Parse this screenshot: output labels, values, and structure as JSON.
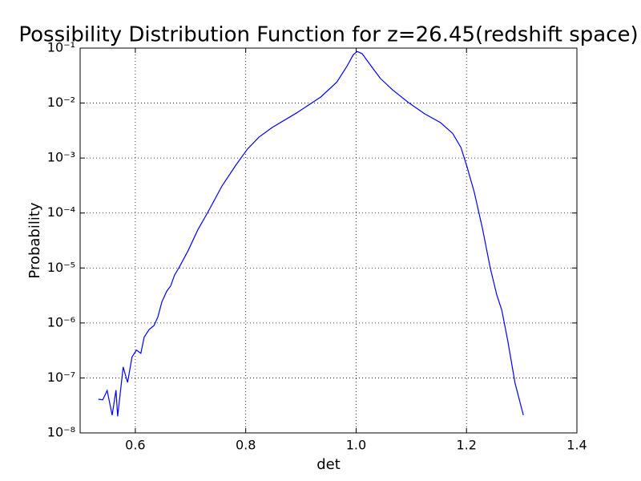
{
  "chart_data": {
    "type": "line",
    "title": "Possibility Distribution Function for z=26.45(redshift space)",
    "xlabel": "det",
    "ylabel": "Probability",
    "x": [
      0.533,
      0.541,
      0.549,
      0.558,
      0.565,
      0.568,
      0.578,
      0.586,
      0.594,
      0.602,
      0.61,
      0.616,
      0.625,
      0.634,
      0.641,
      0.648,
      0.657,
      0.664,
      0.671,
      0.68,
      0.696,
      0.713,
      0.732,
      0.757,
      0.782,
      0.803,
      0.824,
      0.848,
      0.892,
      0.936,
      0.965,
      0.983,
      0.995,
      1.002,
      1.011,
      1.026,
      1.044,
      1.066,
      1.095,
      1.124,
      1.153,
      1.175,
      1.19,
      1.201,
      1.214,
      1.229,
      1.243,
      1.255,
      1.264,
      1.275,
      1.288,
      1.303
    ],
    "values": [
      4.1e-08,
      4e-08,
      5.9e-08,
      2.1e-08,
      6e-08,
      2e-08,
      1.58e-07,
      8.3e-08,
      2.4e-07,
      3.2e-07,
      2.8e-07,
      5.5e-07,
      7.6e-07,
      9e-07,
      1.3e-06,
      2.4e-06,
      3.8e-06,
      4.7e-06,
      7.4e-06,
      1.05e-05,
      2.1e-05,
      4.9e-05,
      0.000106,
      0.00031,
      0.00074,
      0.00145,
      0.0024,
      0.0036,
      0.0066,
      0.0129,
      0.024,
      0.046,
      0.076,
      0.087,
      0.079,
      0.049,
      0.028,
      0.0174,
      0.0102,
      0.0064,
      0.0044,
      0.0028,
      0.00155,
      0.00069,
      0.00024,
      5.2e-05,
      1e-05,
      3.2e-06,
      1.7e-06,
      4.6e-07,
      8e-08,
      2.1e-08
    ],
    "color": "#0000ff",
    "xlim": [
      0.5,
      1.4
    ],
    "xticks": [
      0.6,
      0.8,
      {
        "value": 1,
        "label": "1.0"
      },
      1.2,
      1.4
    ],
    "ylim": [
      1e-08,
      0.1
    ],
    "yscale": "log",
    "yticks": [
      {
        "value": 1e-08,
        "label": "10⁻⁸"
      },
      {
        "value": 1e-07,
        "label": "10⁻⁷"
      },
      {
        "value": 1e-06,
        "label": "10⁻⁶"
      },
      {
        "value": 1e-05,
        "label": "10⁻⁵"
      },
      {
        "value": 0.0001,
        "label": "10⁻⁴"
      },
      {
        "value": 0.001,
        "label": "10⁻³"
      },
      {
        "value": 0.01,
        "label": "10⁻²"
      },
      {
        "value": 0.1,
        "label": "10⁻¹"
      }
    ],
    "grid": true
  }
}
